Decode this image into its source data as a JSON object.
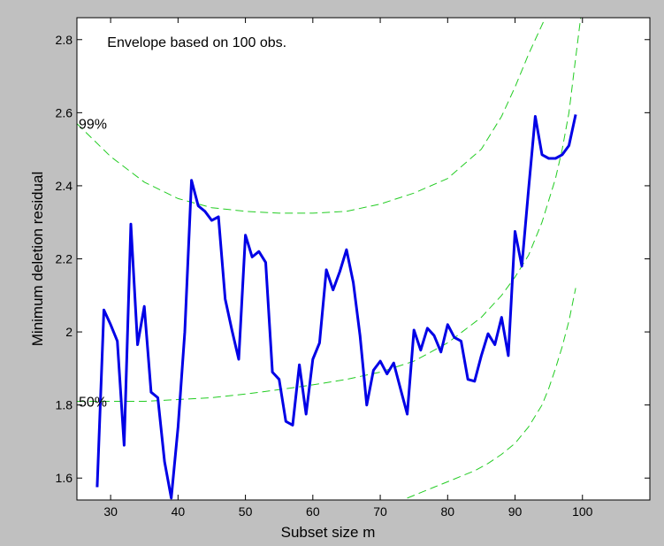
{
  "chart_data": {
    "type": "line",
    "title": "",
    "xlabel": "Subset size m",
    "ylabel": "Minimum deletion residual",
    "xlim": [
      25,
      110
    ],
    "ylim": [
      1.54,
      2.86
    ],
    "xticks": [
      30,
      40,
      50,
      60,
      70,
      80,
      90,
      100
    ],
    "yticks": [
      1.6,
      1.8,
      2,
      2.2,
      2.4,
      2.6,
      2.8
    ],
    "ytick_labels": [
      "1.6",
      "1.8",
      "2",
      "2.2",
      "2.4",
      "2.6",
      "2.8"
    ],
    "grid": false,
    "annotations": {
      "envelope_note": "Envelope based on 100 obs.",
      "label_99": "99%",
      "label_50": "50%"
    },
    "series": [
      {
        "role": "observed",
        "style": "solid",
        "color": "#0000e6",
        "x": [
          28,
          29,
          30,
          31,
          32,
          33,
          34,
          35,
          36,
          37,
          38,
          39,
          40,
          41,
          42,
          43,
          44,
          45,
          46,
          47,
          48,
          49,
          50,
          51,
          52,
          53,
          54,
          55,
          56,
          57,
          58,
          59,
          60,
          61,
          62,
          63,
          64,
          65,
          66,
          67,
          68,
          69,
          70,
          71,
          72,
          73,
          74,
          75,
          76,
          77,
          78,
          79,
          80,
          81,
          82,
          83,
          84,
          85,
          86,
          87,
          88,
          89,
          90,
          91,
          92,
          93,
          94,
          95,
          96,
          97,
          98,
          99
        ],
        "y": [
          1.575,
          2.06,
          2.02,
          1.975,
          1.69,
          2.295,
          1.965,
          2.07,
          1.835,
          1.82,
          1.645,
          1.545,
          1.74,
          2.0,
          2.415,
          2.345,
          2.33,
          2.305,
          2.315,
          2.09,
          2.005,
          1.925,
          2.265,
          2.205,
          2.22,
          2.19,
          1.89,
          1.87,
          1.755,
          1.745,
          1.91,
          1.775,
          1.925,
          1.97,
          2.17,
          2.115,
          2.165,
          2.225,
          2.135,
          1.99,
          1.8,
          1.895,
          1.92,
          1.885,
          1.915,
          1.845,
          1.775,
          2.005,
          1.95,
          2.01,
          1.99,
          1.945,
          2.02,
          1.985,
          1.975,
          1.87,
          1.865,
          1.935,
          1.995,
          1.965,
          2.04,
          1.935,
          2.275,
          2.18,
          2.39,
          2.59,
          2.485,
          2.475,
          2.475,
          2.485,
          2.51,
          2.595
        ]
      },
      {
        "role": "envelope",
        "style": "dashed",
        "color": "#22cc22",
        "x": [
          25,
          30,
          35,
          40,
          45,
          50,
          55,
          60,
          65,
          70,
          75,
          80,
          85,
          88,
          90,
          92,
          95
        ],
        "y": [
          2.57,
          2.48,
          2.41,
          2.365,
          2.34,
          2.33,
          2.325,
          2.325,
          2.33,
          2.35,
          2.38,
          2.42,
          2.5,
          2.59,
          2.67,
          2.76,
          2.88
        ]
      },
      {
        "role": "envelope",
        "style": "dashed",
        "color": "#22cc22",
        "x": [
          25,
          30,
          35,
          40,
          45,
          50,
          55,
          60,
          65,
          70,
          75,
          80,
          85,
          88,
          90,
          92,
          94,
          96,
          97,
          98,
          99,
          100
        ],
        "y": [
          1.81,
          1.81,
          1.81,
          1.815,
          1.82,
          1.83,
          1.842,
          1.855,
          1.87,
          1.89,
          1.92,
          1.97,
          2.04,
          2.1,
          2.15,
          2.21,
          2.3,
          2.42,
          2.5,
          2.6,
          2.75,
          2.9
        ]
      },
      {
        "role": "envelope",
        "style": "dashed",
        "color": "#22cc22",
        "x": [
          74,
          76,
          78,
          80,
          82,
          84,
          86,
          88,
          90,
          92,
          94,
          95,
          96,
          97,
          98,
          99
        ],
        "y": [
          1.545,
          1.56,
          1.575,
          1.59,
          1.605,
          1.62,
          1.64,
          1.665,
          1.695,
          1.74,
          1.8,
          1.845,
          1.9,
          1.96,
          2.03,
          2.12
        ]
      }
    ]
  }
}
